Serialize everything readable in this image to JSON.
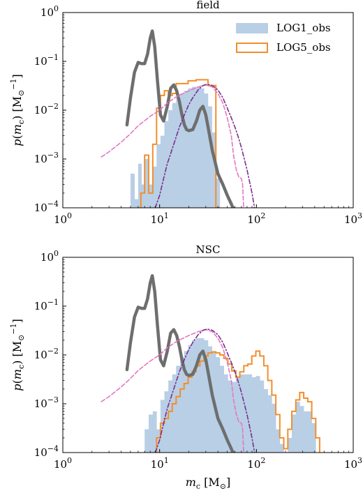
{
  "chart_data": [
    {
      "type": "line",
      "title": "field",
      "xlabel": "",
      "ylabel": "p(m_c) [M_⊙^{-1}]",
      "xscale": "log",
      "yscale": "log",
      "xlim": [
        1,
        1000
      ],
      "ylim": [
        0.0001,
        1
      ],
      "x_ticks": [
        1,
        10,
        100,
        1000
      ],
      "y_ticks": [
        0.0001,
        0.001,
        0.01,
        0.1,
        1
      ],
      "x_tick_labels": [
        {
          "base": "10",
          "exp": "0"
        },
        {
          "base": "10",
          "exp": "1"
        },
        {
          "base": "10",
          "exp": "2"
        },
        {
          "base": "10",
          "exp": "3"
        }
      ],
      "y_tick_labels": [
        {
          "base": "10",
          "exp": "−4"
        },
        {
          "base": "10",
          "exp": "−3"
        },
        {
          "base": "10",
          "exp": "−2"
        },
        {
          "base": "10",
          "exp": "−1"
        },
        {
          "base": "10",
          "exp": "0"
        }
      ],
      "legend": {
        "position": "top-right",
        "entries": [
          "LOG1_obs",
          "LOG5_obs"
        ]
      },
      "series": [
        {
          "name": "LOG1_obs",
          "kind": "filled-histogram",
          "color": "#b8cfe6",
          "edges": [
            5.0,
            5.5,
            6.0,
            6.5,
            7.0,
            7.7,
            8.5,
            9.3,
            10.2,
            11.2,
            12.3,
            13.5,
            14.8,
            16.3,
            17.9,
            19.7,
            21.6,
            23.8,
            26.1,
            28.7,
            31.6,
            34.7,
            38.1,
            41.9
          ],
          "values": [
            0.0005,
            0.00015,
            0.0008,
            0.0003,
            0.001,
            0.0003,
            0.0007,
            0.002,
            0.003,
            0.006,
            0.01,
            0.014,
            0.018,
            0.022,
            0.025,
            0.028,
            0.03,
            0.03,
            0.028,
            0.022,
            0.012,
            0.0035,
            0.0004
          ]
        },
        {
          "name": "LOG5_obs",
          "kind": "step-histogram",
          "color": "#f28e2b",
          "edges": [
            6.4,
            7.0,
            7.7,
            8.5,
            9.3,
            10.2,
            11.2,
            12.3,
            13.5,
            14.8,
            16.3,
            17.9,
            19.7,
            21.6,
            23.8,
            26.1,
            28.7,
            31.6,
            34.7,
            38.1,
            41.9
          ],
          "values": [
            0.0002,
            0.0012,
            0.0002,
            0.002,
            0.011,
            0.02,
            0.025,
            0.02,
            0.022,
            0.035,
            0.035,
            0.035,
            0.04,
            0.04,
            0.042,
            0.042,
            0.042,
            0.032,
            0.032,
            0.0001
          ]
        },
        {
          "kind": "line",
          "style": "solid-thick",
          "color": "#6e6e6e",
          "x": [
            4.6,
            5.0,
            5.5,
            6.0,
            6.5,
            7.0,
            7.5,
            8.0,
            8.4,
            8.9,
            9.5,
            10.2,
            11.0,
            12.0,
            13.0,
            14.0,
            15.0,
            16.0,
            17.0,
            18.0,
            19.0,
            20.0,
            22.0,
            24.0,
            26.0,
            28.0,
            30.0,
            32.0,
            35.0,
            40.0,
            45.0,
            50.0,
            55.0,
            60.0
          ],
          "y": [
            0.005,
            0.018,
            0.06,
            0.095,
            0.09,
            0.09,
            0.14,
            0.3,
            0.42,
            0.2,
            0.04,
            0.008,
            0.006,
            0.012,
            0.028,
            0.033,
            0.025,
            0.015,
            0.008,
            0.005,
            0.004,
            0.0038,
            0.004,
            0.006,
            0.01,
            0.012,
            0.008,
            0.004,
            0.0015,
            0.0005,
            0.0003,
            0.00018,
            0.00012,
            8e-05
          ]
        },
        {
          "kind": "line",
          "style": "dashed",
          "color": "#e377c2",
          "x": [
            2.5,
            3.0,
            4.0,
            5.0,
            6.0,
            8.0,
            10.0,
            12.0,
            15.0,
            20.0,
            25.0,
            30.0,
            35.0,
            40.0,
            45.0,
            50.0,
            55.0,
            58.0,
            62.0,
            66.0,
            70.0,
            72.0,
            75.0
          ],
          "y": [
            0.0011,
            0.0014,
            0.0022,
            0.0033,
            0.0048,
            0.0075,
            0.01,
            0.014,
            0.019,
            0.025,
            0.03,
            0.033,
            0.03,
            0.022,
            0.014,
            0.007,
            0.003,
            0.0012,
            0.0006,
            0.00042,
            0.0004,
            0.0003,
            5e-05
          ]
        },
        {
          "kind": "line",
          "style": "dash-dot",
          "color": "#7b2d8b",
          "x": [
            9.0,
            10.0,
            11.0,
            12.0,
            14.0,
            16.0,
            18.0,
            20.0,
            22.0,
            25.0,
            28.0,
            31.0,
            35.0,
            40.0,
            45.0,
            50.0,
            55.0,
            60.0,
            65.0,
            70.0,
            80.0,
            90.0,
            100.0
          ],
          "y": [
            0.0001,
            0.00018,
            0.0004,
            0.0008,
            0.002,
            0.0045,
            0.008,
            0.013,
            0.018,
            0.026,
            0.032,
            0.034,
            0.032,
            0.026,
            0.018,
            0.011,
            0.007,
            0.0045,
            0.0028,
            0.0017,
            0.0006,
            0.0002,
            6e-05
          ]
        }
      ]
    },
    {
      "type": "line",
      "title": "NSC",
      "xlabel": "m_c [M_⊙]",
      "ylabel": "p(m_c) [M_⊙^{-1}]",
      "xscale": "log",
      "yscale": "log",
      "xlim": [
        1,
        1000
      ],
      "ylim": [
        0.0001,
        1
      ],
      "x_ticks": [
        1,
        10,
        100,
        1000
      ],
      "y_ticks": [
        0.0001,
        0.001,
        0.01,
        0.1,
        1
      ],
      "x_tick_labels": [
        {
          "base": "10",
          "exp": "0"
        },
        {
          "base": "10",
          "exp": "1"
        },
        {
          "base": "10",
          "exp": "2"
        },
        {
          "base": "10",
          "exp": "3"
        }
      ],
      "y_tick_labels": [
        {
          "base": "10",
          "exp": "−4"
        },
        {
          "base": "10",
          "exp": "−3"
        },
        {
          "base": "10",
          "exp": "−2"
        },
        {
          "base": "10",
          "exp": "−1"
        },
        {
          "base": "10",
          "exp": "0"
        }
      ],
      "series": [
        {
          "name": "LOG1_obs",
          "kind": "filled-histogram",
          "color": "#b8cfe6",
          "edges": [
            7.0,
            7.7,
            8.5,
            9.3,
            10.2,
            11.2,
            12.3,
            13.5,
            14.8,
            16.3,
            17.9,
            19.7,
            21.6,
            23.8,
            26.1,
            28.7,
            31.6,
            34.7,
            38.1,
            41.9,
            46.1,
            50.7,
            55.7,
            61.3,
            67.4,
            74.1,
            81.5,
            89.6,
            98.6,
            108.4,
            119.2,
            131.1,
            144.2,
            158.6,
            174.4,
            191.8,
            211.0,
            232.0,
            255.0,
            280.0,
            308.0,
            339.0,
            373.0,
            410.0
          ],
          "values": [
            0.0003,
            0.0006,
            0.0007,
            0.0003,
            0.0012,
            0.0018,
            0.003,
            0.004,
            0.006,
            0.009,
            0.012,
            0.016,
            0.02,
            0.022,
            0.022,
            0.02,
            0.015,
            0.012,
            0.009,
            0.006,
            0.004,
            0.003,
            0.0028,
            0.0035,
            0.004,
            0.004,
            0.004,
            0.0035,
            0.0037,
            0.003,
            0.002,
            0.0015,
            0.001,
            0.0003,
            0.00015,
            0.0001,
            0.0002,
            0.0006,
            0.0011,
            0.0009,
            0.0007,
            0.0007,
            0.0004
          ]
        },
        {
          "name": "LOG5_obs",
          "kind": "step-histogram",
          "color": "#f28e2b",
          "edges": [
            9.3,
            10.2,
            11.2,
            12.3,
            13.5,
            14.8,
            16.3,
            17.9,
            19.7,
            21.6,
            23.8,
            26.1,
            28.7,
            31.6,
            34.7,
            38.1,
            41.9,
            46.1,
            50.7,
            55.7,
            61.3,
            67.4,
            74.1,
            81.5,
            89.6,
            98.6,
            108.4,
            119.2,
            131.1,
            144.2,
            158.6,
            174.4,
            191.8,
            211.0,
            232.0,
            255.0,
            280.0,
            308.0,
            339.0,
            373.0,
            410.0,
            450.0
          ],
          "values": [
            0.0002,
            0.0004,
            0.0005,
            0.0007,
            0.001,
            0.0014,
            0.002,
            0.0026,
            0.0035,
            0.0045,
            0.006,
            0.0075,
            0.0095,
            0.011,
            0.0115,
            0.011,
            0.01,
            0.0085,
            0.0065,
            0.0047,
            0.0035,
            0.0045,
            0.006,
            0.0065,
            0.0095,
            0.012,
            0.0095,
            0.006,
            0.003,
            0.0015,
            0.0006,
            0.0002,
            0.00012,
            0.0003,
            0.0007,
            0.0012,
            0.0017,
            0.0013,
            0.0011,
            0.0005,
            0.0002
          ]
        },
        {
          "kind": "line",
          "style": "solid-thick",
          "color": "#6e6e6e",
          "x": [
            4.6,
            5.0,
            5.5,
            6.0,
            6.5,
            7.0,
            7.5,
            8.0,
            8.4,
            8.9,
            9.5,
            10.2,
            11.0,
            12.0,
            13.0,
            14.0,
            15.0,
            16.0,
            17.0,
            18.0,
            19.0,
            20.0,
            22.0,
            24.0,
            26.0,
            28.0,
            30.0,
            32.0,
            35.0,
            40.0,
            45.0,
            50.0,
            55.0,
            60.0
          ],
          "y": [
            0.005,
            0.018,
            0.06,
            0.095,
            0.09,
            0.09,
            0.14,
            0.3,
            0.42,
            0.2,
            0.04,
            0.008,
            0.006,
            0.012,
            0.028,
            0.033,
            0.025,
            0.015,
            0.008,
            0.005,
            0.004,
            0.0038,
            0.004,
            0.006,
            0.01,
            0.012,
            0.008,
            0.004,
            0.0015,
            0.0005,
            0.0003,
            0.00018,
            0.00012,
            8e-05
          ]
        },
        {
          "kind": "line",
          "style": "dashed",
          "color": "#e377c2",
          "x": [
            2.5,
            3.0,
            4.0,
            5.0,
            6.0,
            8.0,
            10.0,
            12.0,
            15.0,
            20.0,
            25.0,
            30.0,
            35.0,
            40.0,
            45.0,
            50.0,
            55.0,
            58.0,
            62.0,
            66.0,
            70.0,
            72.0,
            75.0
          ],
          "y": [
            0.0011,
            0.0014,
            0.0022,
            0.0033,
            0.0048,
            0.0075,
            0.01,
            0.014,
            0.019,
            0.025,
            0.03,
            0.033,
            0.03,
            0.022,
            0.014,
            0.007,
            0.003,
            0.0012,
            0.0006,
            0.00042,
            0.0004,
            0.0003,
            5e-05
          ]
        },
        {
          "kind": "line",
          "style": "dash-dot",
          "color": "#7b2d8b",
          "x": [
            9.0,
            10.0,
            11.0,
            12.0,
            14.0,
            16.0,
            18.0,
            20.0,
            22.0,
            25.0,
            28.0,
            31.0,
            35.0,
            40.0,
            45.0,
            50.0,
            55.0,
            60.0,
            65.0,
            70.0,
            80.0,
            90.0,
            100.0
          ],
          "y": [
            0.0001,
            0.00018,
            0.0004,
            0.0008,
            0.002,
            0.0045,
            0.008,
            0.013,
            0.018,
            0.026,
            0.032,
            0.034,
            0.032,
            0.026,
            0.018,
            0.011,
            0.007,
            0.0045,
            0.0028,
            0.0017,
            0.0006,
            0.0002,
            6e-05
          ]
        }
      ]
    }
  ]
}
